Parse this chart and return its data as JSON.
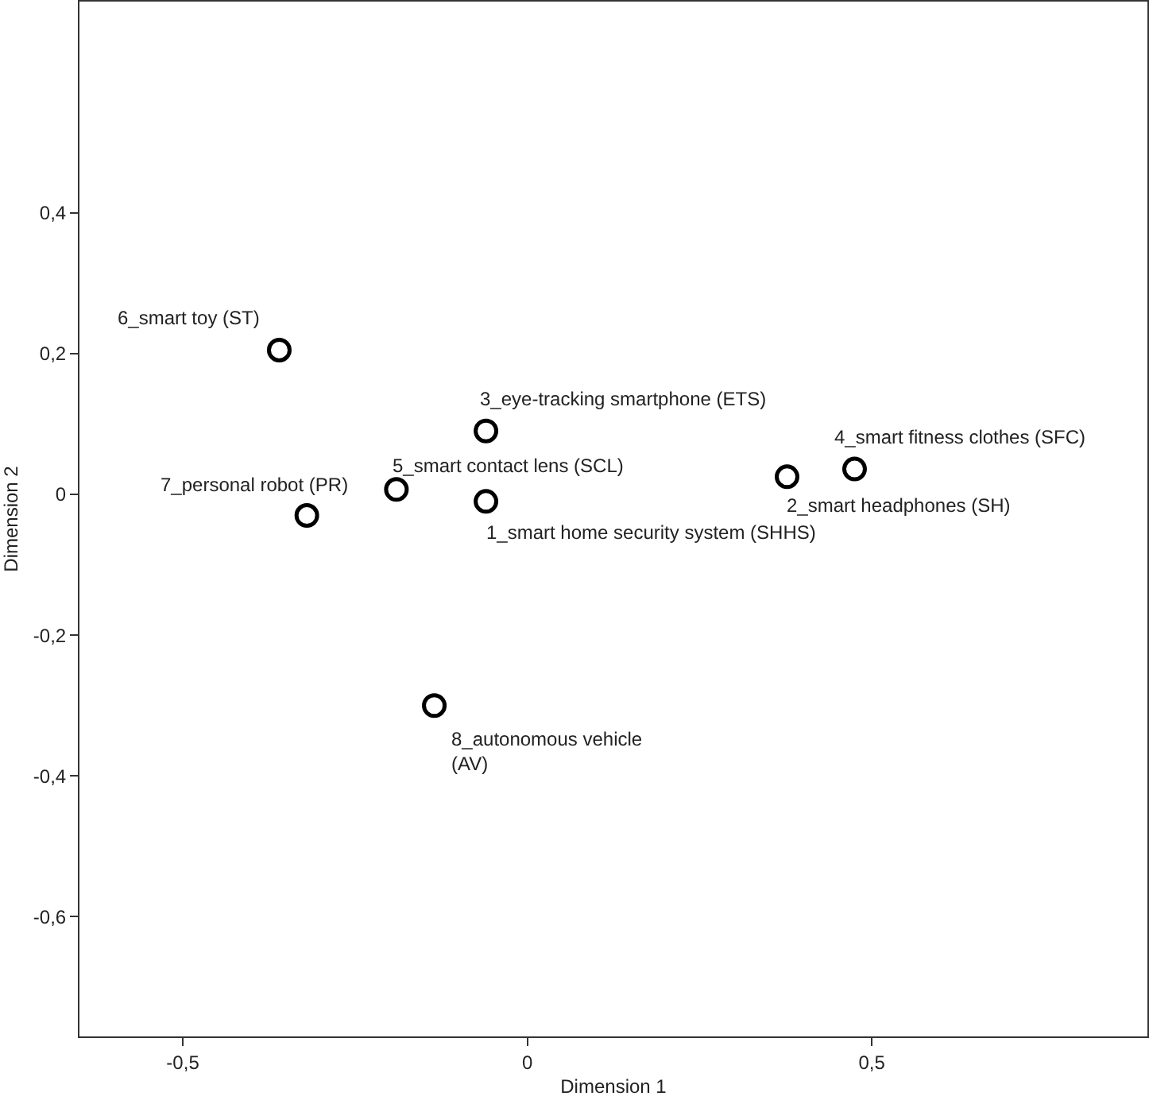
{
  "chart_data": {
    "type": "scatter",
    "xlabel": "Dimension 1",
    "ylabel": "Dimension 2",
    "x": [
      -0.06,
      0.377,
      -0.06,
      0.475,
      -0.19,
      -0.36,
      -0.32,
      -0.135
    ],
    "values": [
      -0.01,
      0.025,
      0.09,
      0.036,
      0.007,
      0.205,
      -0.03,
      -0.3
    ],
    "color": "#000000",
    "marker": "circle",
    "grid": false,
    "xlim": [
      -0.65,
      0.9
    ],
    "ylim": [
      -0.77,
      0.7
    ],
    "xticks": [
      {
        "value": -0.5,
        "label": "-0,5"
      },
      0,
      {
        "value": 0.5,
        "label": "0,5"
      }
    ],
    "yticks": [
      {
        "value": -0.6,
        "label": "-0,6"
      },
      {
        "value": -0.4,
        "label": "-0,4"
      },
      {
        "value": -0.2,
        "label": "-0,2"
      },
      0,
      {
        "value": 0.2,
        "label": "0,2"
      },
      {
        "value": 0.4,
        "label": "0,4"
      }
    ],
    "annotations": [
      {
        "text": "1_smart home security system (SHHS)",
        "x": -0.06,
        "y": -0.01
      },
      {
        "text": "2_smart headphones (SH)",
        "x": 0.377,
        "y": 0.025
      },
      {
        "text": "3_eye-tracking smartphone (ETS)",
        "x": -0.06,
        "y": 0.09
      },
      {
        "text": "4_smart fitness clothes (SFC)",
        "x": 0.475,
        "y": 0.036
      },
      {
        "text": "5_smart contact lens (SCL)",
        "x": -0.19,
        "y": 0.007
      },
      {
        "text": "6_smart toy (ST)",
        "x": -0.36,
        "y": 0.205
      },
      {
        "text": "7_personal robot (PR)",
        "x": -0.32,
        "y": -0.03
      },
      {
        "text": "8_autonomous vehicle\n(AV)",
        "x": -0.135,
        "y": -0.3
      }
    ]
  }
}
